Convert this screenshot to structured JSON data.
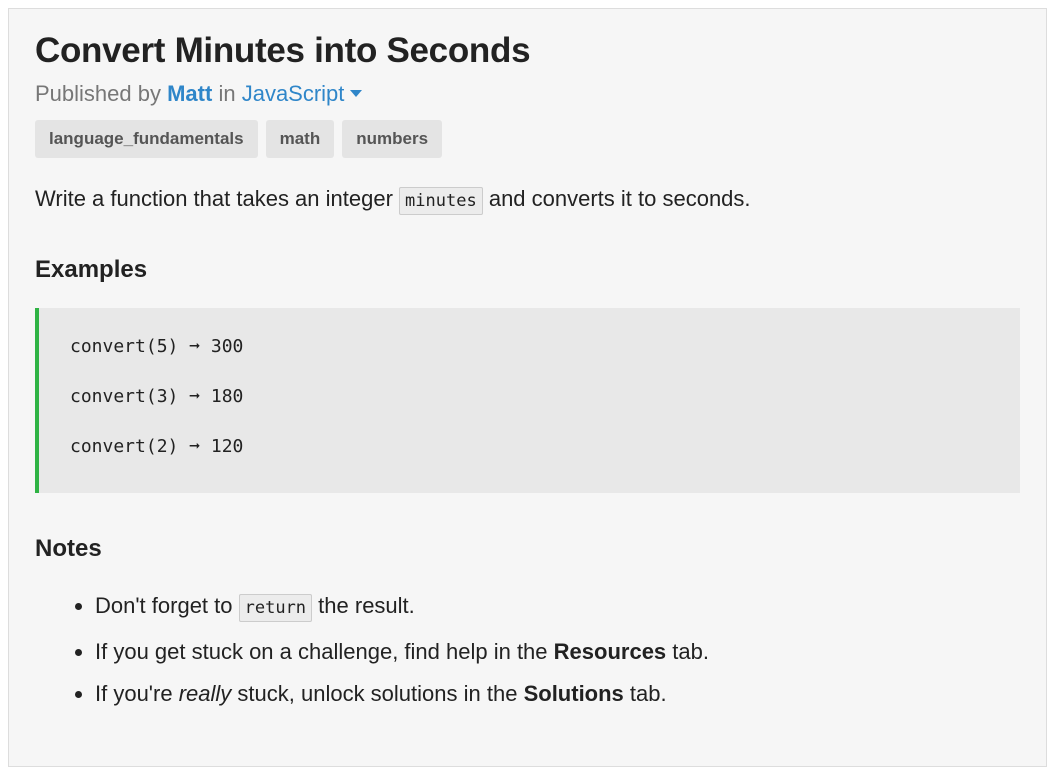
{
  "challenge": {
    "title": "Convert Minutes into Seconds",
    "published_by_prefix": "Published by",
    "author": "Matt",
    "in_text": "in",
    "language": "JavaScript"
  },
  "tags": [
    "language_fundamentals",
    "math",
    "numbers"
  ],
  "description": {
    "before": "Write a function that takes an integer",
    "code": "minutes",
    "after": "and converts it to seconds."
  },
  "examples": {
    "heading": "Examples",
    "lines": [
      "convert(5) ➞ 300",
      "convert(3) ➞ 180",
      "convert(2) ➞ 120"
    ]
  },
  "notes": {
    "heading": "Notes",
    "items": [
      {
        "before": "Don't forget to",
        "code": "return",
        "after": "the result."
      },
      {
        "before": "If you get stuck on a challenge, find help in the",
        "bold": "Resources",
        "after": "tab."
      },
      {
        "before": "If you're",
        "italic": "really",
        "middle": "stuck, unlock solutions in the",
        "bold": "Solutions",
        "after": "tab."
      }
    ]
  },
  "colors": {
    "link": "#2f86c9",
    "example_border": "#2fb344",
    "card_background": "#f6f6f6"
  },
  "icons": {
    "language_dropdown": "caret-down-icon",
    "arrow": "right-arrow-icon"
  }
}
